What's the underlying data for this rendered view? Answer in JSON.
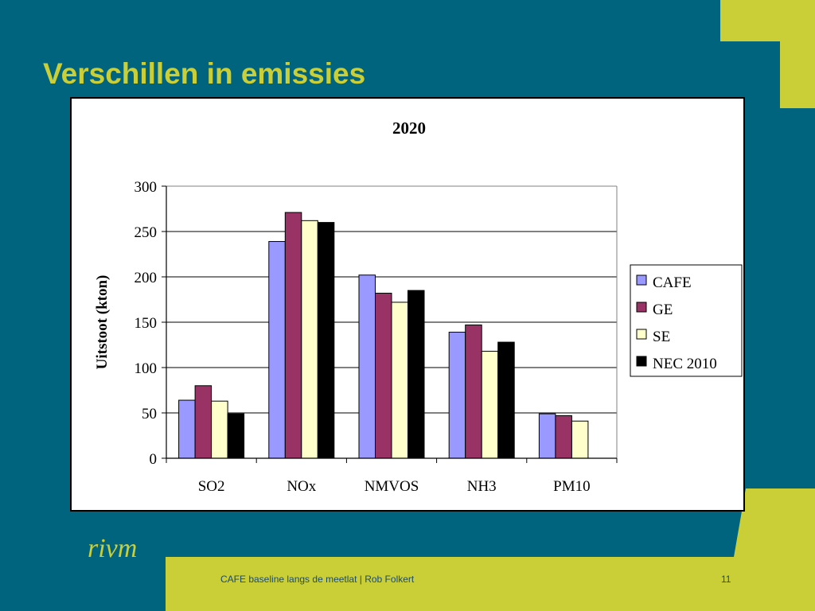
{
  "slide": {
    "title": "Verschillen in emissies",
    "footer_text": "CAFE baseline langs de meetlat | Rob Folkert",
    "page_number": "11",
    "logo_text": "rivm"
  },
  "colors": {
    "background": "#00647e",
    "accent": "#cbcf37",
    "footer_text": "#1a4b6e"
  },
  "chart_data": {
    "type": "bar",
    "title": "2020",
    "xlabel": "",
    "ylabel": "Uitstoot (kton)",
    "categories": [
      "SO2",
      "NOx",
      "NMVOS",
      "NH3",
      "PM10"
    ],
    "ylim": [
      0,
      300
    ],
    "yticks": [
      0,
      50,
      100,
      150,
      200,
      250,
      300
    ],
    "grid": true,
    "legend_position": "right",
    "series": [
      {
        "name": "CAFE",
        "color": "#9999ff",
        "values": [
          64,
          239,
          202,
          139,
          49
        ]
      },
      {
        "name": "GE",
        "color": "#993366",
        "values": [
          80,
          271,
          182,
          147,
          47
        ]
      },
      {
        "name": "SE",
        "color": "#ffffcc",
        "values": [
          63,
          262,
          172,
          118,
          41
        ]
      },
      {
        "name": "NEC 2010",
        "color": "#000000",
        "values": [
          49,
          260,
          185,
          128,
          null
        ]
      }
    ]
  }
}
